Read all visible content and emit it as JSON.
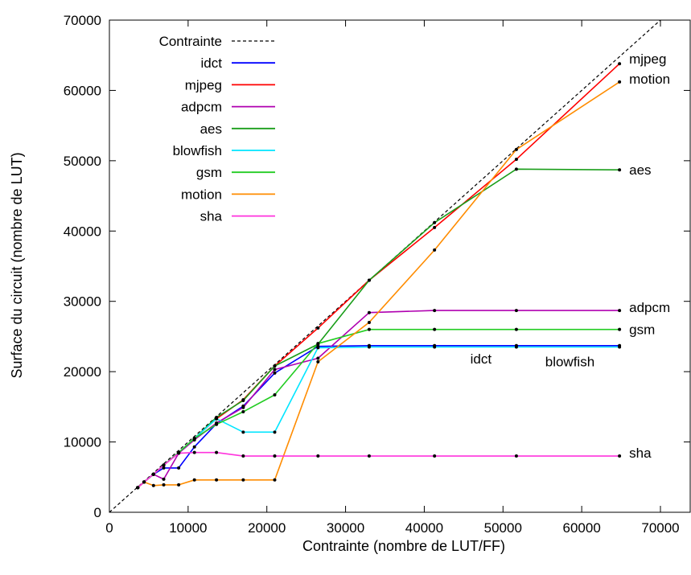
{
  "chart_data": {
    "type": "line",
    "xlabel": "Contrainte (nombre de LUT/FF)",
    "ylabel": "Surface du circuit (nombre de LUT)",
    "xlim": [
      0,
      70000
    ],
    "ylim": [
      0,
      70000
    ],
    "xticks": [
      0,
      10000,
      20000,
      30000,
      40000,
      50000,
      60000,
      70000
    ],
    "yticks": [
      0,
      10000,
      20000,
      30000,
      40000,
      50000,
      60000,
      70000
    ],
    "grid": false,
    "legend_position": "top-left",
    "constraint": {
      "name": "Contrainte",
      "color": "#000000",
      "dashed": true,
      "x": [
        0,
        70000
      ],
      "y": [
        0,
        70000
      ]
    },
    "series": [
      {
        "name": "idct",
        "color": "#0000ff",
        "x": [
          3600,
          4400,
          5600,
          6900,
          8800,
          10800,
          13600,
          17000,
          21000,
          26500,
          33000,
          41300,
          51700,
          64800
        ],
        "y": [
          3500,
          4300,
          5400,
          6300,
          6300,
          9300,
          12600,
          15100,
          19800,
          23600,
          23700,
          23700,
          23700,
          23700
        ],
        "end_label": "idct"
      },
      {
        "name": "mjpeg",
        "color": "#ff0000",
        "x": [
          3600,
          4400,
          5600,
          6900,
          8800,
          10800,
          13600,
          17000,
          21000,
          26500,
          33000,
          41300,
          51700,
          64800
        ],
        "y": [
          3500,
          4300,
          5400,
          6700,
          8500,
          10500,
          13300,
          16000,
          20800,
          26200,
          33000,
          40500,
          50200,
          63800
        ],
        "end_label": "mjpeg"
      },
      {
        "name": "adpcm",
        "color": "#b000b0",
        "x": [
          3600,
          4400,
          5600,
          6900,
          8800,
          10800,
          13600,
          17000,
          21000,
          26500,
          33000,
          41300,
          51700,
          64800
        ],
        "y": [
          3500,
          4300,
          5400,
          4700,
          8400,
          10300,
          12700,
          14900,
          20300,
          21900,
          28400,
          28700,
          28700,
          28700
        ],
        "end_label": "adpcm"
      },
      {
        "name": "aes",
        "color": "#1a9e1a",
        "x": [
          3600,
          4400,
          5600,
          6900,
          8800,
          10800,
          13600,
          17000,
          21000,
          26500,
          33000,
          41300,
          51700,
          64800
        ],
        "y": [
          3500,
          4300,
          5400,
          6700,
          8500,
          10500,
          13500,
          15900,
          20800,
          23900,
          33000,
          41200,
          48800,
          48700
        ],
        "end_label": "aes"
      },
      {
        "name": "blowfish",
        "color": "#00e5ff",
        "x": [
          3600,
          4400,
          5600,
          6900,
          8800,
          10800,
          13600,
          17000,
          21000,
          26500,
          33000,
          41300,
          51700,
          64800
        ],
        "y": [
          3500,
          4300,
          5400,
          6700,
          8500,
          10500,
          13300,
          11400,
          11400,
          23400,
          23500,
          23500,
          23500,
          23500
        ],
        "end_label": "blowfish"
      },
      {
        "name": "gsm",
        "color": "#22cc22",
        "x": [
          3600,
          4400,
          5600,
          6900,
          8800,
          10800,
          13600,
          17000,
          21000,
          26500,
          33000,
          41300,
          51700,
          64800
        ],
        "y": [
          3500,
          4300,
          5400,
          6700,
          8500,
          10500,
          12500,
          14300,
          16700,
          24000,
          26000,
          26000,
          26000,
          26000
        ],
        "end_label": "gsm"
      },
      {
        "name": "motion",
        "color": "#ff8c00",
        "x": [
          3600,
          4400,
          5600,
          6900,
          8800,
          10800,
          13600,
          17000,
          21000,
          26500,
          33000,
          41300,
          51700,
          64800
        ],
        "y": [
          3500,
          4300,
          3800,
          3900,
          3900,
          4600,
          4600,
          4600,
          4600,
          21400,
          27000,
          37300,
          51600,
          61200
        ],
        "end_label": "motion"
      },
      {
        "name": "sha",
        "color": "#ff33dd",
        "x": [
          3600,
          4400,
          5600,
          6900,
          8800,
          10800,
          13600,
          17000,
          21000,
          26500,
          33000,
          41300,
          51700,
          64800
        ],
        "y": [
          3500,
          4300,
          5400,
          6700,
          8400,
          8500,
          8500,
          8000,
          8000,
          8000,
          8000,
          8000,
          8000,
          8000
        ],
        "end_label": "sha"
      }
    ]
  }
}
